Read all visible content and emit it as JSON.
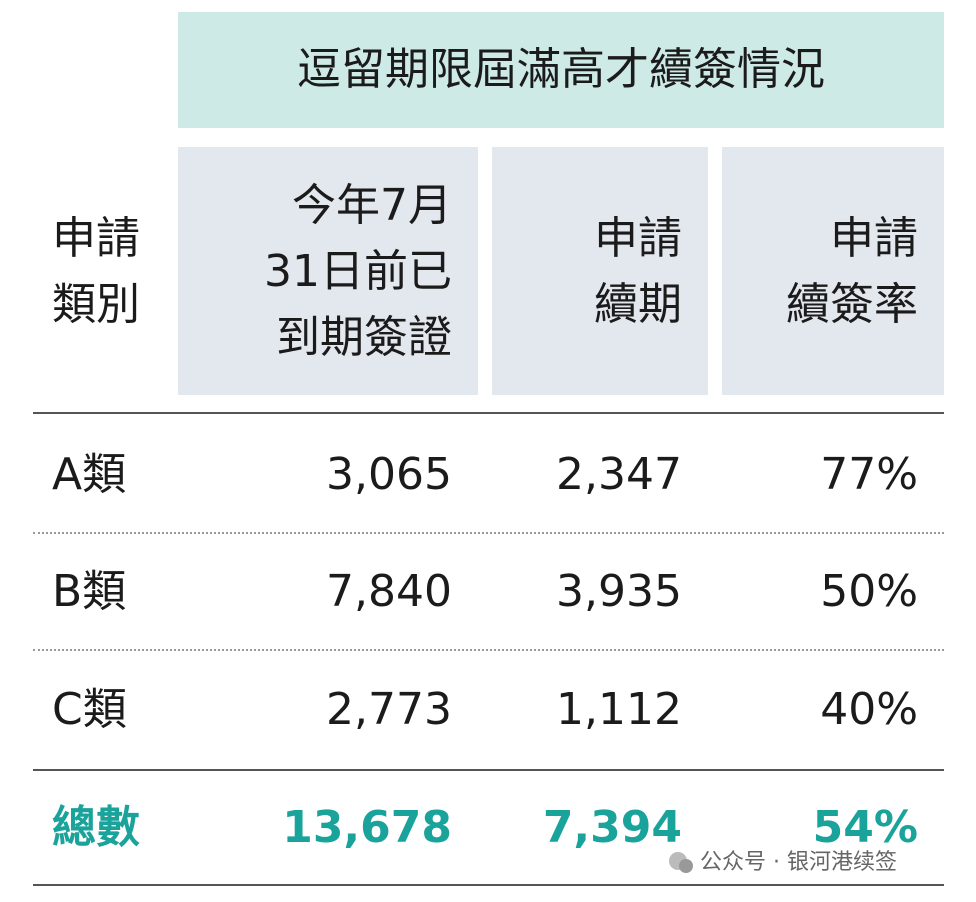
{
  "title": "逗留期限屆滿高才續簽情況",
  "header": {
    "category": [
      "申請",
      "類別"
    ],
    "columns": [
      [
        "今年7月",
        "31日前已",
        "到期簽證"
      ],
      [
        "申請",
        "續期"
      ],
      [
        "申請",
        "續簽率"
      ]
    ]
  },
  "rows": [
    [
      "A類",
      "3,065",
      "2,347",
      "77%"
    ],
    [
      "B類",
      "7,840",
      "3,935",
      "50%"
    ],
    [
      "C類",
      "2,773",
      "1,112",
      "40%"
    ]
  ],
  "total": [
    "總數",
    "13,678",
    "7,394",
    "54%"
  ],
  "watermark": "公众号 · 银河港续签"
}
